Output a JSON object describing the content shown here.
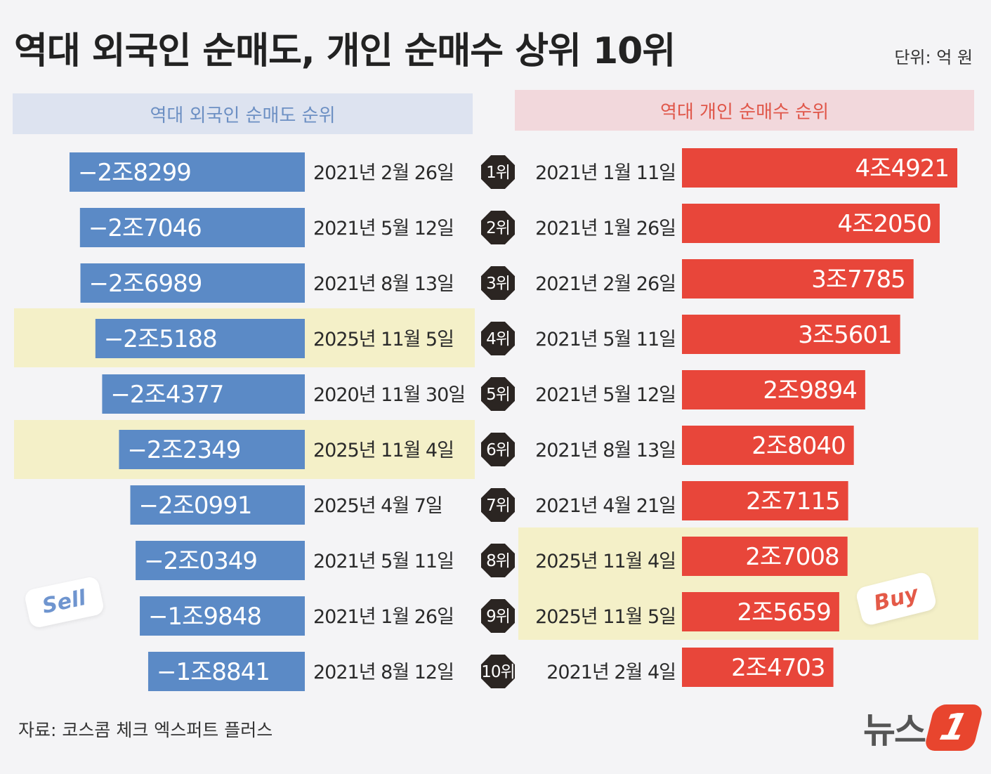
{
  "title": "역대 외국인 순매도, 개인 순매수 상위 10위",
  "unit": "단위: 억 원",
  "headers": {
    "left": "역대 외국인 순매도 순위",
    "right": "역대 개인 순매수 순위"
  },
  "colors": {
    "sell_bar": "#5b8ac6",
    "buy_bar": "#e8463a",
    "highlight": "#f4f0c8",
    "rank_badge": "#2b2522"
  },
  "chart_data": {
    "type": "bar",
    "title": "역대 외국인 순매도, 개인 순매수 상위 10위",
    "unit": "억 원",
    "ranks": [
      "1위",
      "2위",
      "3위",
      "4위",
      "5위",
      "6위",
      "7위",
      "8위",
      "9위",
      "10위"
    ],
    "series": [
      {
        "name": "역대 외국인 순매도 순위",
        "values": [
          -28299,
          -27046,
          -26989,
          -25188,
          -24377,
          -22349,
          -20991,
          -20349,
          -19848,
          -18841
        ],
        "labels": [
          "−2조8299",
          "−2조7046",
          "−2조6989",
          "−2조5188",
          "−2조4377",
          "−2조2349",
          "−2조0991",
          "−2조0349",
          "−1조9848",
          "−1조8841"
        ],
        "dates": [
          "2021년 2월 26일",
          "2021년 5월 12일",
          "2021년 8월 13일",
          "2025년 11월 5일",
          "2020년 11월 30일",
          "2025년 11월 4일",
          "2025년 4월 7일",
          "2021년 5월 11일",
          "2021년 1월 26일",
          "2021년 8월 12일"
        ],
        "highlighted_ranks": [
          4,
          6
        ]
      },
      {
        "name": "역대 개인 순매수 순위",
        "values": [
          44921,
          42050,
          37785,
          35601,
          29894,
          28040,
          27115,
          27008,
          25659,
          24703
        ],
        "labels": [
          "4조4921",
          "4조2050",
          "3조7785",
          "3조5601",
          "2조9894",
          "2조8040",
          "2조7115",
          "2조7008",
          "2조5659",
          "2조4703"
        ],
        "dates": [
          "2021년 1월 11일",
          "2021년 1월 26일",
          "2021년 2월 26일",
          "2021년 5월 11일",
          "2021년 5월 12일",
          "2021년 8월 13일",
          "2021년 4월 21일",
          "2025년 11월 4일",
          "2025년 11월 5일",
          "2021년 2월 4일"
        ],
        "highlighted_ranks": [
          8,
          9
        ]
      }
    ]
  },
  "decorations": {
    "sell_tag": "Sell",
    "buy_tag": "Buy"
  },
  "source": "자료: 코스콤 체크 엑스퍼트 플러스",
  "logo": {
    "text": "뉴스",
    "mark": "1"
  }
}
